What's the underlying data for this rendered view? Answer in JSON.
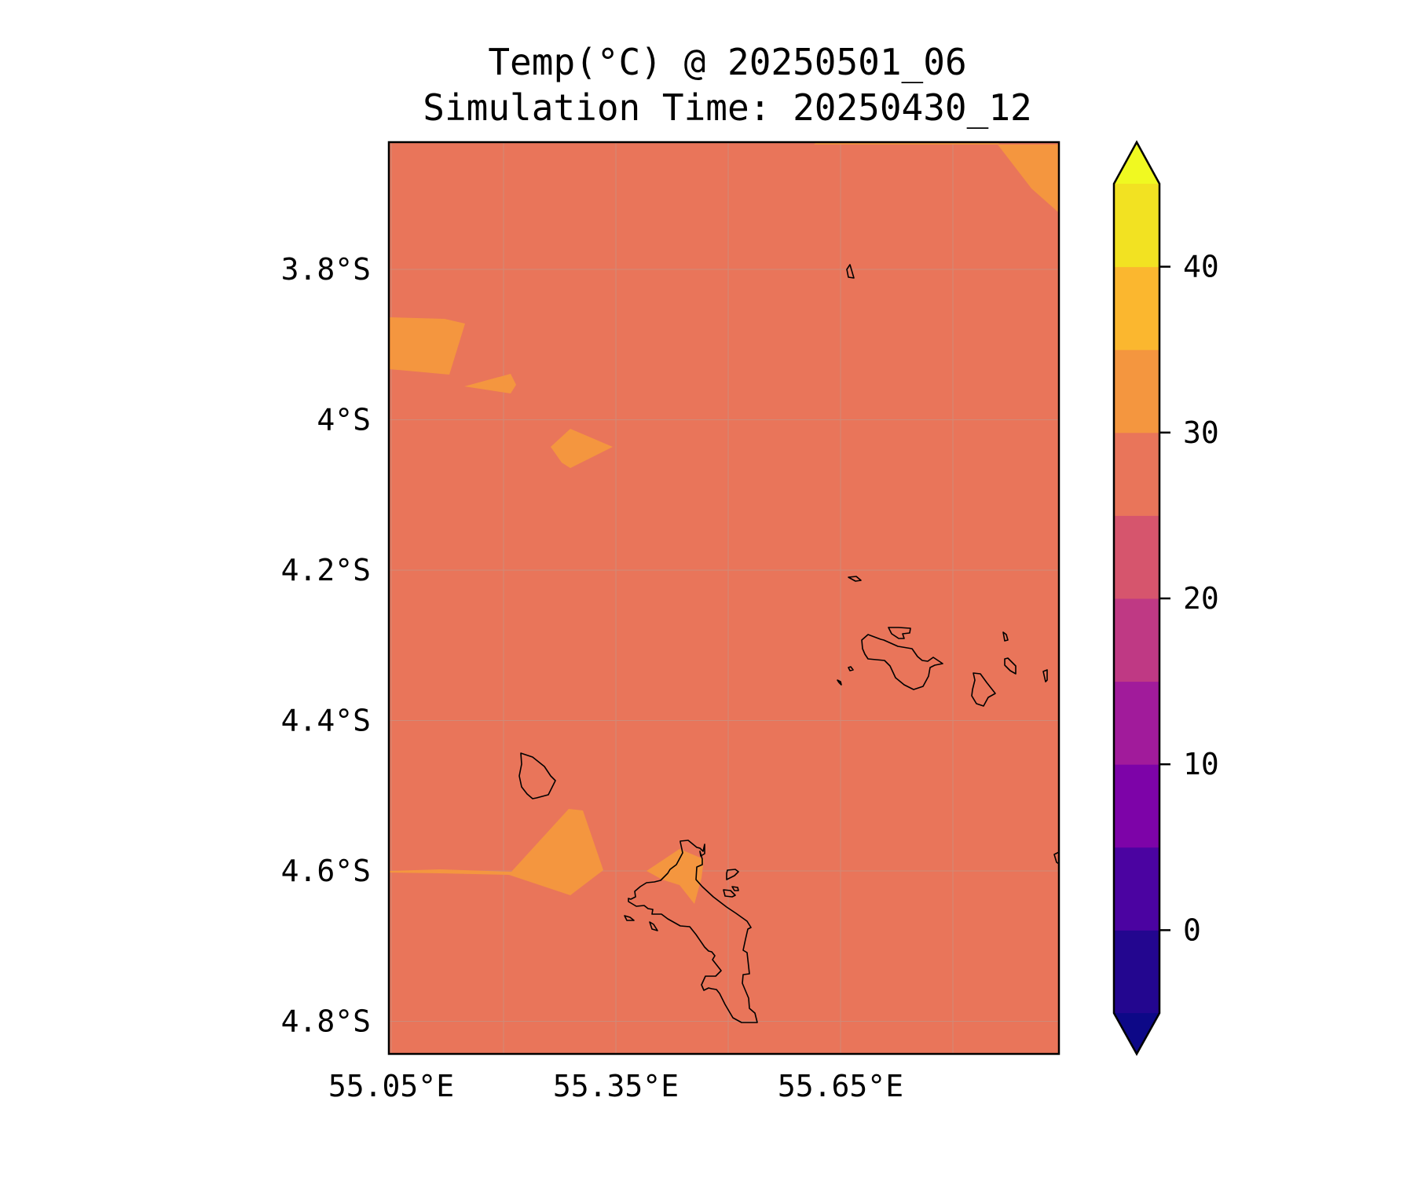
{
  "title": {
    "line1": "Temp(°C) @ 20250501_06",
    "line2": "Simulation Time: 20250430_12"
  },
  "map": {
    "base_color": "#e9755a",
    "warm_color": "#f4963f",
    "grid_color": "#cf8a78",
    "coastline_color": "#000000",
    "lat_ticks": [
      {
        "value": -3.8,
        "label": "3.8°S"
      },
      {
        "value": -4.0,
        "label": "4°S"
      },
      {
        "value": -4.2,
        "label": "4.2°S"
      },
      {
        "value": -4.4,
        "label": "4.4°S"
      },
      {
        "value": -4.6,
        "label": "4.6°S"
      },
      {
        "value": -4.8,
        "label": "4.8°S"
      }
    ],
    "lon_ticks": [
      {
        "value": 55.05,
        "label": "55.05°E"
      },
      {
        "value": 55.35,
        "label": "55.35°E"
      },
      {
        "value": 55.65,
        "label": "55.65°E"
      }
    ]
  },
  "colorbar": {
    "bands": [
      {
        "from": -5,
        "to": 0,
        "color": "#23068f"
      },
      {
        "from": 0,
        "to": 5,
        "color": "#4b03a1"
      },
      {
        "from": 5,
        "to": 10,
        "color": "#7d03a8"
      },
      {
        "from": 10,
        "to": 15,
        "color": "#a11b9b"
      },
      {
        "from": 15,
        "to": 20,
        "color": "#bf3984"
      },
      {
        "from": 20,
        "to": 25,
        "color": "#d6556d"
      },
      {
        "from": 25,
        "to": 30,
        "color": "#e9755a"
      },
      {
        "from": 30,
        "to": 35,
        "color": "#f4963f"
      },
      {
        "from": 35,
        "to": 40,
        "color": "#fbb72f"
      },
      {
        "from": 40,
        "to": 45,
        "color": "#f2e222"
      }
    ],
    "under_color": "#0d0887",
    "over_color": "#f0f921",
    "ticks": [
      {
        "value": 0,
        "label": "0"
      },
      {
        "value": 10,
        "label": "10"
      },
      {
        "value": 20,
        "label": "20"
      },
      {
        "value": 30,
        "label": "30"
      },
      {
        "value": 40,
        "label": "40"
      }
    ]
  }
}
